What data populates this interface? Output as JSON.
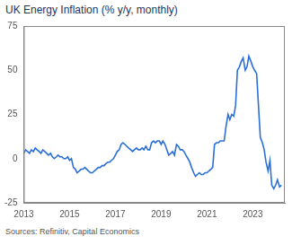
{
  "chart_data": {
    "type": "line",
    "title": "UK Energy Inflation (% y/y, monthly)",
    "source": "Sources: Refinitiv, Capital Economics",
    "x": [
      2013,
      2013.08,
      2013.17,
      2013.25,
      2013.33,
      2013.42,
      2013.5,
      2013.58,
      2013.67,
      2013.75,
      2013.83,
      2013.92,
      2014,
      2014.08,
      2014.17,
      2014.25,
      2014.33,
      2014.42,
      2014.5,
      2014.58,
      2014.67,
      2014.75,
      2014.83,
      2014.92,
      2015,
      2015.08,
      2015.17,
      2015.25,
      2015.33,
      2015.42,
      2015.5,
      2015.58,
      2015.67,
      2015.75,
      2015.83,
      2015.92,
      2016,
      2016.08,
      2016.17,
      2016.25,
      2016.33,
      2016.42,
      2016.5,
      2016.58,
      2016.67,
      2016.75,
      2016.83,
      2016.92,
      2017,
      2017.08,
      2017.17,
      2017.25,
      2017.33,
      2017.42,
      2017.5,
      2017.58,
      2017.67,
      2017.75,
      2017.83,
      2017.92,
      2018,
      2018.08,
      2018.17,
      2018.25,
      2018.33,
      2018.42,
      2018.5,
      2018.58,
      2018.67,
      2018.75,
      2018.83,
      2018.92,
      2019,
      2019.08,
      2019.17,
      2019.25,
      2019.33,
      2019.42,
      2019.5,
      2019.58,
      2019.67,
      2019.75,
      2019.83,
      2019.92,
      2020,
      2020.08,
      2020.17,
      2020.25,
      2020.33,
      2020.42,
      2020.5,
      2020.58,
      2020.67,
      2020.75,
      2020.83,
      2020.92,
      2021,
      2021.08,
      2021.17,
      2021.25,
      2021.33,
      2021.42,
      2021.5,
      2021.58,
      2021.67,
      2021.75,
      2021.83,
      2021.92,
      2022,
      2022.08,
      2022.17,
      2022.25,
      2022.33,
      2022.42,
      2022.5,
      2022.58,
      2022.67,
      2022.75,
      2022.83,
      2022.92,
      2023,
      2023.08,
      2023.17,
      2023.25,
      2023.33,
      2023.42,
      2023.5,
      2023.58,
      2023.67,
      2023.75,
      2023.83,
      2023.92,
      2024,
      2024.08,
      2024.17,
      2024.25
    ],
    "values": [
      3,
      5,
      4,
      3,
      5,
      4,
      6,
      5,
      4,
      3,
      5,
      4,
      3,
      2,
      3,
      1,
      0,
      1,
      2,
      1,
      1,
      0,
      0,
      1,
      -1,
      0,
      -5,
      -6,
      -8,
      -7,
      -6,
      -6,
      -5,
      -6,
      -7,
      -8,
      -8,
      -7,
      -6,
      -5,
      -5,
      -4,
      -4,
      -3,
      -2,
      -2,
      -1,
      0,
      2,
      4,
      5,
      8,
      9,
      8,
      7,
      6,
      5,
      4,
      5,
      6,
      5,
      5,
      6,
      5,
      7,
      5,
      5,
      9,
      10,
      9,
      10,
      10,
      8,
      10,
      8,
      5,
      2,
      3,
      4,
      2,
      8,
      7,
      5,
      5,
      4,
      2,
      0,
      -2,
      -5,
      -8,
      -10,
      -9,
      -8,
      -9,
      -9,
      -8,
      -8,
      -7,
      -6,
      -5,
      8,
      9,
      9,
      10,
      10,
      10,
      18,
      25,
      22,
      25,
      24,
      30,
      50,
      52,
      55,
      57,
      50,
      52,
      58,
      55,
      52,
      50,
      48,
      30,
      12,
      9,
      5,
      -2,
      -7,
      -1,
      -15,
      -17,
      -15,
      -12,
      -16,
      -15
    ],
    "color": "#2b6fd6",
    "xlim": [
      2013,
      2024.4
    ],
    "xticks": [
      2013,
      2015,
      2017,
      2019,
      2021,
      2023
    ],
    "ylim": [
      -25,
      75
    ],
    "yticks": [
      -25,
      0,
      25,
      50,
      75
    ],
    "grid": false
  }
}
